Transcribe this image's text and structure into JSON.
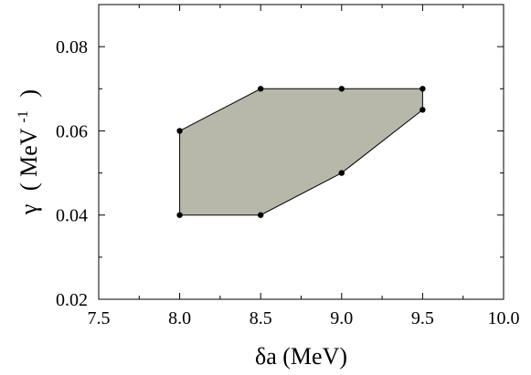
{
  "chart_data": {
    "type": "area",
    "title": "",
    "xlabel": "δa (MeV)",
    "ylabel": {
      "symbol": "γ",
      "open": "( MeV",
      "superscript": "-1",
      "close": ")"
    },
    "xlim": [
      7.5,
      10.0
    ],
    "ylim": [
      0.02,
      0.09
    ],
    "xticks": [
      7.5,
      8.0,
      8.5,
      9.0,
      9.5,
      10.0
    ],
    "xtick_labels": [
      "7.5",
      "8.0",
      "8.5",
      "9.0",
      "9.5",
      "10.0"
    ],
    "yticks": [
      0.02,
      0.04,
      0.06,
      0.08
    ],
    "ytick_labels": [
      "0.02",
      "0.04",
      "0.06",
      "0.08"
    ],
    "grid": false,
    "fill_color": "#b8b8aa",
    "series": [
      {
        "x": [
          8.0,
          8.5,
          9.0,
          9.5,
          9.5,
          9.0,
          8.5,
          8.0
        ],
        "y": [
          0.06,
          0.07,
          0.07,
          0.07,
          0.065,
          0.05,
          0.04,
          0.04
        ]
      }
    ]
  }
}
